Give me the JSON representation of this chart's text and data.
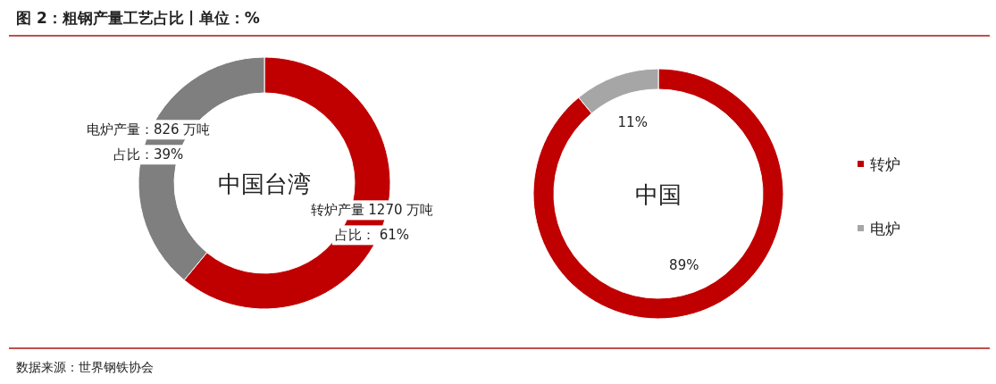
{
  "chart_data": [
    {
      "type": "donut",
      "title": "图 2：粗钢产量工艺占比丨单位：%",
      "categories": [
        null,
        null
      ],
      "values": [
        61,
        39
      ],
      "colors": [
        "#c00000",
        "#7f7f7f"
      ],
      "value_labels": [
        "占比： 61%",
        "占比：39%"
      ],
      "annotations": [
        "中国台湾",
        "转炉产量 1270 万吨",
        "电炉产量：826 万吨"
      ],
      "legend": false
    },
    {
      "type": "donut",
      "categories": [
        "转炉",
        "电炉"
      ],
      "values": [
        89,
        11
      ],
      "colors": [
        "#c00000",
        "#a6a6a6"
      ],
      "value_labels": [
        "89%",
        "11%"
      ],
      "annotations": [
        "中国",
        "数据来源：世界钢铁协会"
      ],
      "legend": "right"
    }
  ]
}
